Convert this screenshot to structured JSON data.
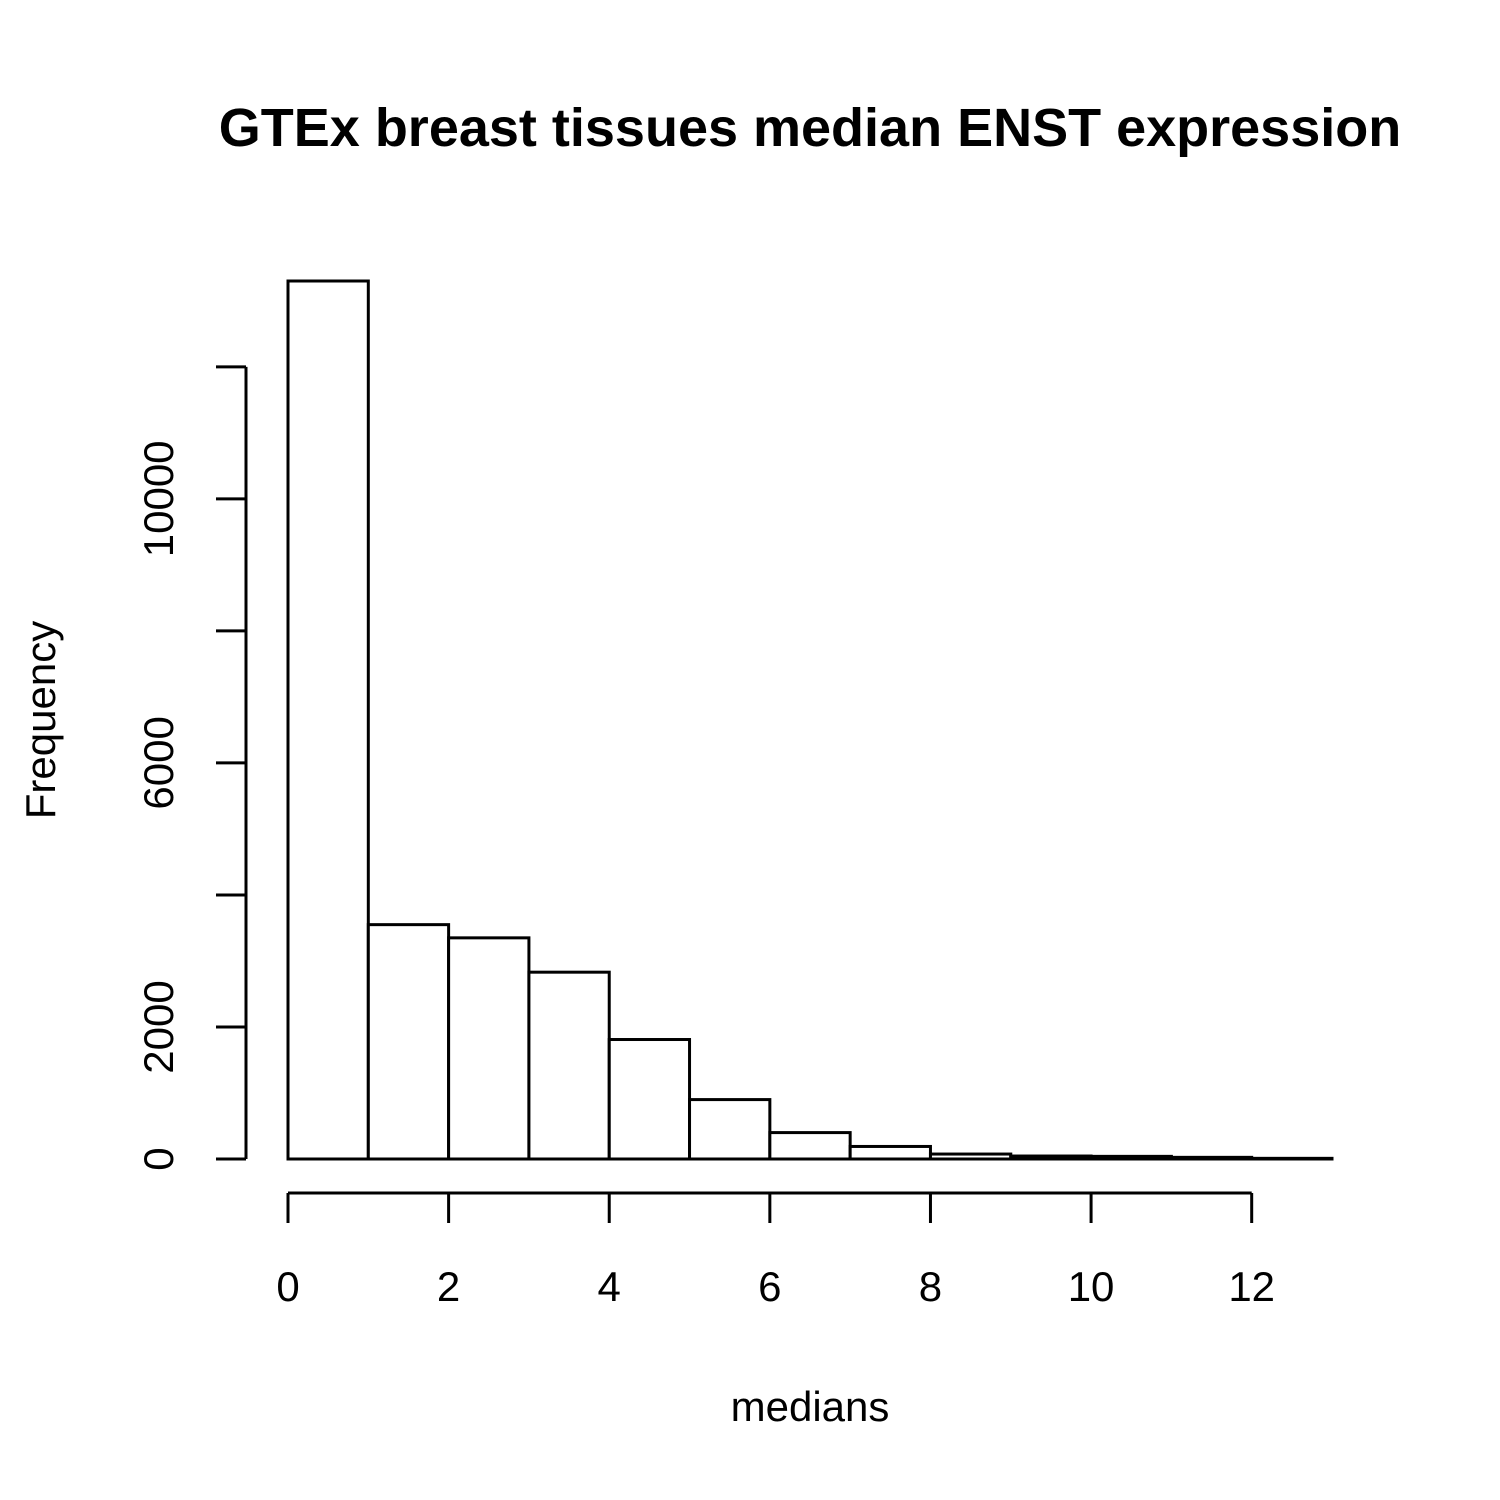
{
  "chart_data": {
    "type": "bar",
    "title": "GTEx breast tissues median ENST expression",
    "xlabel": "medians",
    "ylabel": "Frequency",
    "bin_edges": [
      0,
      1,
      2,
      3,
      4,
      5,
      6,
      7,
      8,
      9,
      10,
      11,
      12,
      13
    ],
    "values": [
      13300,
      3550,
      3350,
      2830,
      1810,
      900,
      400,
      190,
      75,
      45,
      40,
      25,
      10
    ],
    "xlim": [
      0,
      13
    ],
    "ylim": [
      0,
      13300
    ],
    "x_ticks": [
      0,
      2,
      4,
      6,
      8,
      10,
      12
    ],
    "x_tick_labels": [
      "0",
      "2",
      "4",
      "6",
      "8",
      "10",
      "12"
    ],
    "y_ticks": [
      0,
      2000,
      4000,
      6000,
      8000,
      10000,
      12000
    ],
    "y_tick_labels": [
      "0",
      "2000",
      "",
      "6000",
      "",
      "10000",
      ""
    ],
    "grid": false,
    "legend": "none"
  }
}
